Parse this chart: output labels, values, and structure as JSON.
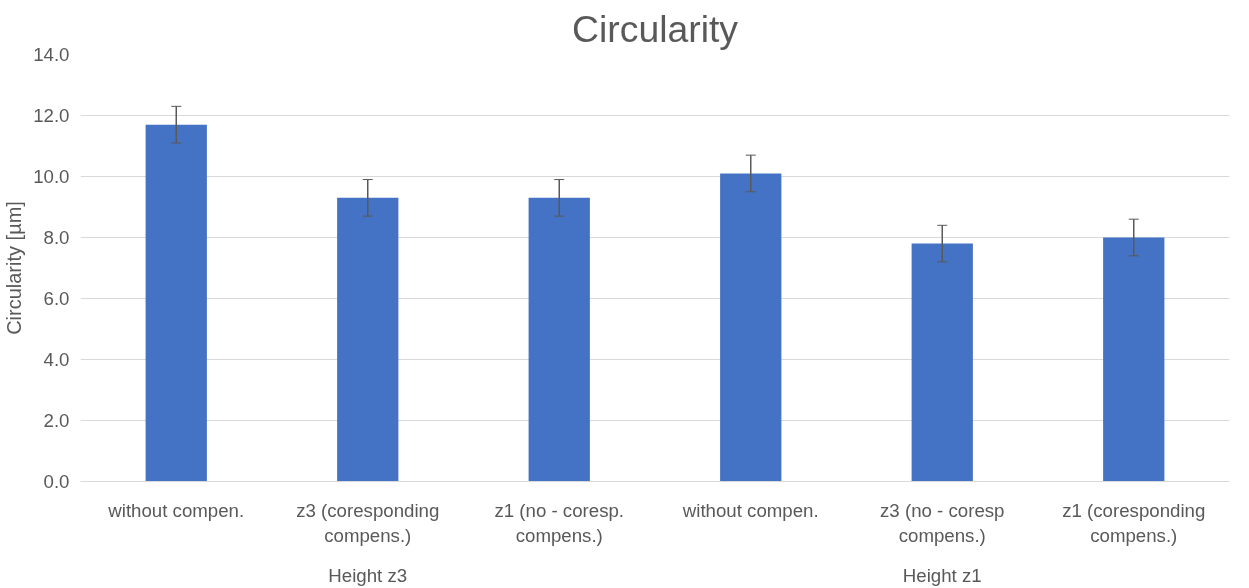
{
  "chart_data": {
    "type": "bar",
    "title": "Circularity",
    "ylabel": "Circularity [µm]",
    "categories": [
      "without compen.",
      "z3 (coresponding compens.)",
      "z1 (no - coresp. compens.)",
      "without compen.",
      "z3 (no - coresp compens.)",
      "z1 (coresponding compens.)"
    ],
    "values": [
      11.7,
      9.3,
      9.3,
      10.1,
      7.8,
      8.0
    ],
    "errors": [
      0.6,
      0.6,
      0.6,
      0.6,
      0.6,
      0.6
    ],
    "color": "#4472c4",
    "ylim": [
      0,
      14
    ],
    "yticks": [
      {
        "value": 0,
        "label": "0.0"
      },
      {
        "value": 2,
        "label": "2.0"
      },
      {
        "value": 4,
        "label": "4.0"
      },
      {
        "value": 6,
        "label": "6.0"
      },
      {
        "value": 8,
        "label": "8.0"
      },
      {
        "value": 10,
        "label": "10.0"
      },
      {
        "value": 12,
        "label": "12.0"
      },
      {
        "value": 14,
        "label": "14.0"
      }
    ],
    "grid": "y",
    "annotations": [
      "Height z3",
      "Height z1"
    ]
  }
}
